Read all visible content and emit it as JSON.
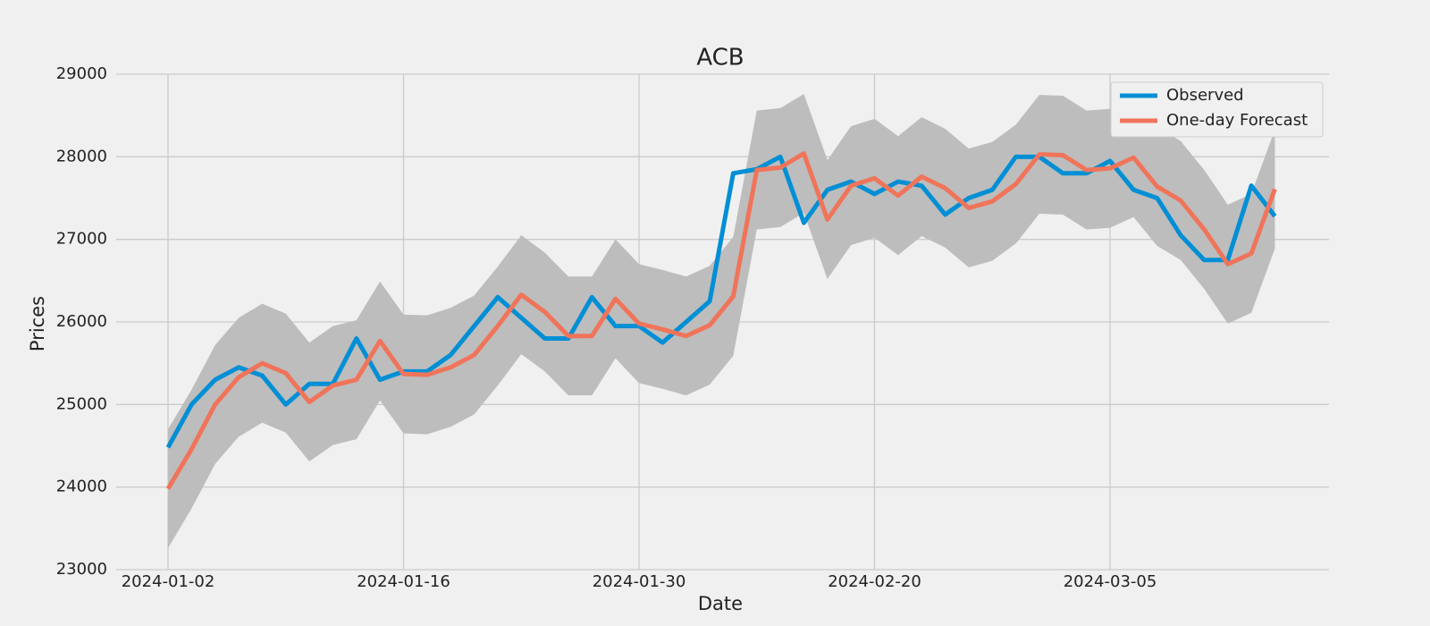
{
  "chart_data": {
    "type": "line",
    "title": "ACB",
    "x_label": "Date",
    "y_label": "Prices",
    "categories": [
      "2024-01-02",
      null,
      null,
      null,
      null,
      null,
      null,
      null,
      null,
      null,
      "2024-01-16",
      null,
      null,
      null,
      null,
      null,
      null,
      null,
      null,
      null,
      "2024-01-30",
      null,
      null,
      null,
      null,
      null,
      null,
      null,
      null,
      null,
      "2024-02-20",
      null,
      null,
      null,
      null,
      null,
      null,
      null,
      null,
      null,
      "2024-03-05",
      null,
      null,
      null,
      null,
      null,
      null,
      null
    ],
    "series": [
      {
        "name": "Observed",
        "color": "#008fd5",
        "values": [
          24480,
          25000,
          25300,
          25450,
          25350,
          25000,
          25250,
          25250,
          25800,
          25300,
          25400,
          25400,
          25600,
          25950,
          26300,
          26050,
          25800,
          25800,
          26300,
          25950,
          25950,
          25750,
          26000,
          26250,
          27800,
          27850,
          28000,
          27200,
          27600,
          27700,
          27550,
          27700,
          27650,
          27300,
          27500,
          27600,
          28000,
          28000,
          27800,
          27800,
          27950,
          27600,
          27500,
          27050,
          26750,
          26750,
          27650,
          27280
        ]
      },
      {
        "name": "One-day Forecast",
        "color": "#f0745a",
        "values": [
          23980,
          24460,
          25000,
          25330,
          25500,
          25380,
          25030,
          25230,
          25300,
          25770,
          25370,
          25360,
          25450,
          25600,
          25950,
          26330,
          26120,
          25830,
          25830,
          26280,
          25980,
          25910,
          25830,
          25960,
          26310,
          27840,
          27870,
          28040,
          27240,
          27650,
          27740,
          27530,
          27760,
          27620,
          27380,
          27460,
          27670,
          28030,
          28020,
          27840,
          27860,
          27990,
          27640,
          27470,
          27120,
          26700,
          26830,
          27610
        ]
      }
    ],
    "band": {
      "color": "#bdbdbd",
      "upper": [
        24700,
        25180,
        25720,
        26050,
        26220,
        26100,
        25750,
        25950,
        26020,
        26490,
        26090,
        26080,
        26170,
        26320,
        26670,
        27050,
        26840,
        26550,
        26550,
        27000,
        26700,
        26630,
        26550,
        26680,
        27030,
        28560,
        28590,
        28760,
        27960,
        28370,
        28460,
        28250,
        28480,
        28340,
        28100,
        28180,
        28390,
        28750,
        28740,
        28560,
        28580,
        28710,
        28360,
        28190,
        27840,
        27420,
        27550,
        28330
      ],
      "lower": [
        23260,
        23740,
        24280,
        24610,
        24780,
        24660,
        24310,
        24510,
        24580,
        25050,
        24650,
        24640,
        24730,
        24880,
        25230,
        25610,
        25400,
        25110,
        25110,
        25560,
        25260,
        25190,
        25110,
        25240,
        25590,
        27120,
        27150,
        27320,
        26520,
        26930,
        27020,
        26810,
        27040,
        26900,
        26660,
        26740,
        26950,
        27310,
        27300,
        27120,
        27140,
        27270,
        26920,
        26750,
        26400,
        25980,
        26110,
        26890
      ]
    },
    "ylim": [
      23000,
      29000
    ],
    "yticks": [
      23000,
      24000,
      25000,
      26000,
      27000,
      28000,
      29000
    ],
    "grid": true,
    "legend": "upper right"
  }
}
